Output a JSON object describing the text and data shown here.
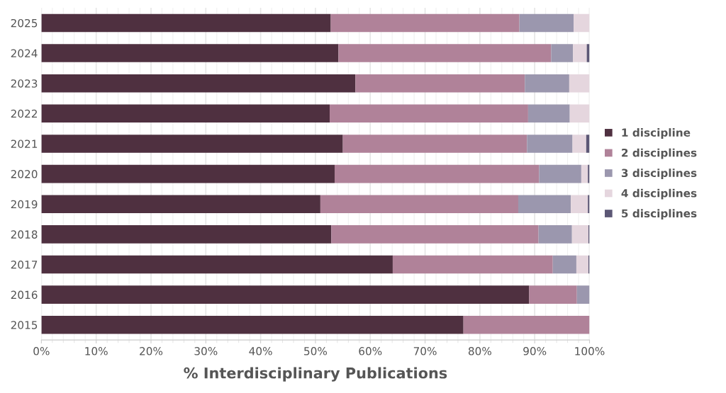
{
  "chart_data": {
    "type": "bar",
    "orientation": "horizontal",
    "stacked": true,
    "xlabel": "% Interdisciplinary Publications",
    "categories": [
      "2025",
      "2024",
      "2023",
      "2022",
      "2021",
      "2020",
      "2019",
      "2018",
      "2017",
      "2016",
      "2015"
    ],
    "series": [
      {
        "name": "1 discipline",
        "color": "#4f3040",
        "values": [
          52.8,
          54.2,
          57.3,
          52.6,
          55.0,
          53.5,
          50.9,
          52.9,
          64.1,
          89.0,
          77.0
        ]
      },
      {
        "name": "2 disciplines",
        "color": "#b08299",
        "values": [
          34.4,
          38.8,
          30.9,
          36.2,
          33.6,
          37.3,
          36.1,
          37.8,
          29.2,
          8.7,
          23.0
        ]
      },
      {
        "name": "3 disciplines",
        "color": "#9b97ae",
        "values": [
          9.9,
          4.0,
          8.1,
          7.6,
          8.3,
          7.7,
          9.6,
          6.1,
          4.3,
          2.3,
          0
        ]
      },
      {
        "name": "4 disciplines",
        "color": "#e5d6de",
        "values": [
          2.9,
          2.5,
          3.7,
          3.6,
          2.5,
          1.2,
          3.1,
          3.0,
          2.2,
          0,
          0
        ]
      },
      {
        "name": "5 disciplines",
        "color": "#5c5775",
        "values": [
          0,
          0.5,
          0,
          0,
          0.6,
          0.3,
          0.3,
          0.2,
          0.2,
          0,
          0
        ]
      }
    ],
    "xlim": [
      0,
      100
    ],
    "xticks": [
      {
        "value": 0,
        "label": "0%"
      },
      {
        "value": 10,
        "label": "10%"
      },
      {
        "value": 20,
        "label": "20%"
      },
      {
        "value": 30,
        "label": "30%"
      },
      {
        "value": 40,
        "label": "40%"
      },
      {
        "value": 50,
        "label": "50%"
      },
      {
        "value": 60,
        "label": "60%"
      },
      {
        "value": 70,
        "label": "70%"
      },
      {
        "value": 80,
        "label": "80%"
      },
      {
        "value": 90,
        "label": "90%"
      },
      {
        "value": 100,
        "label": "100%"
      }
    ],
    "grid": "x",
    "legend": "right"
  }
}
